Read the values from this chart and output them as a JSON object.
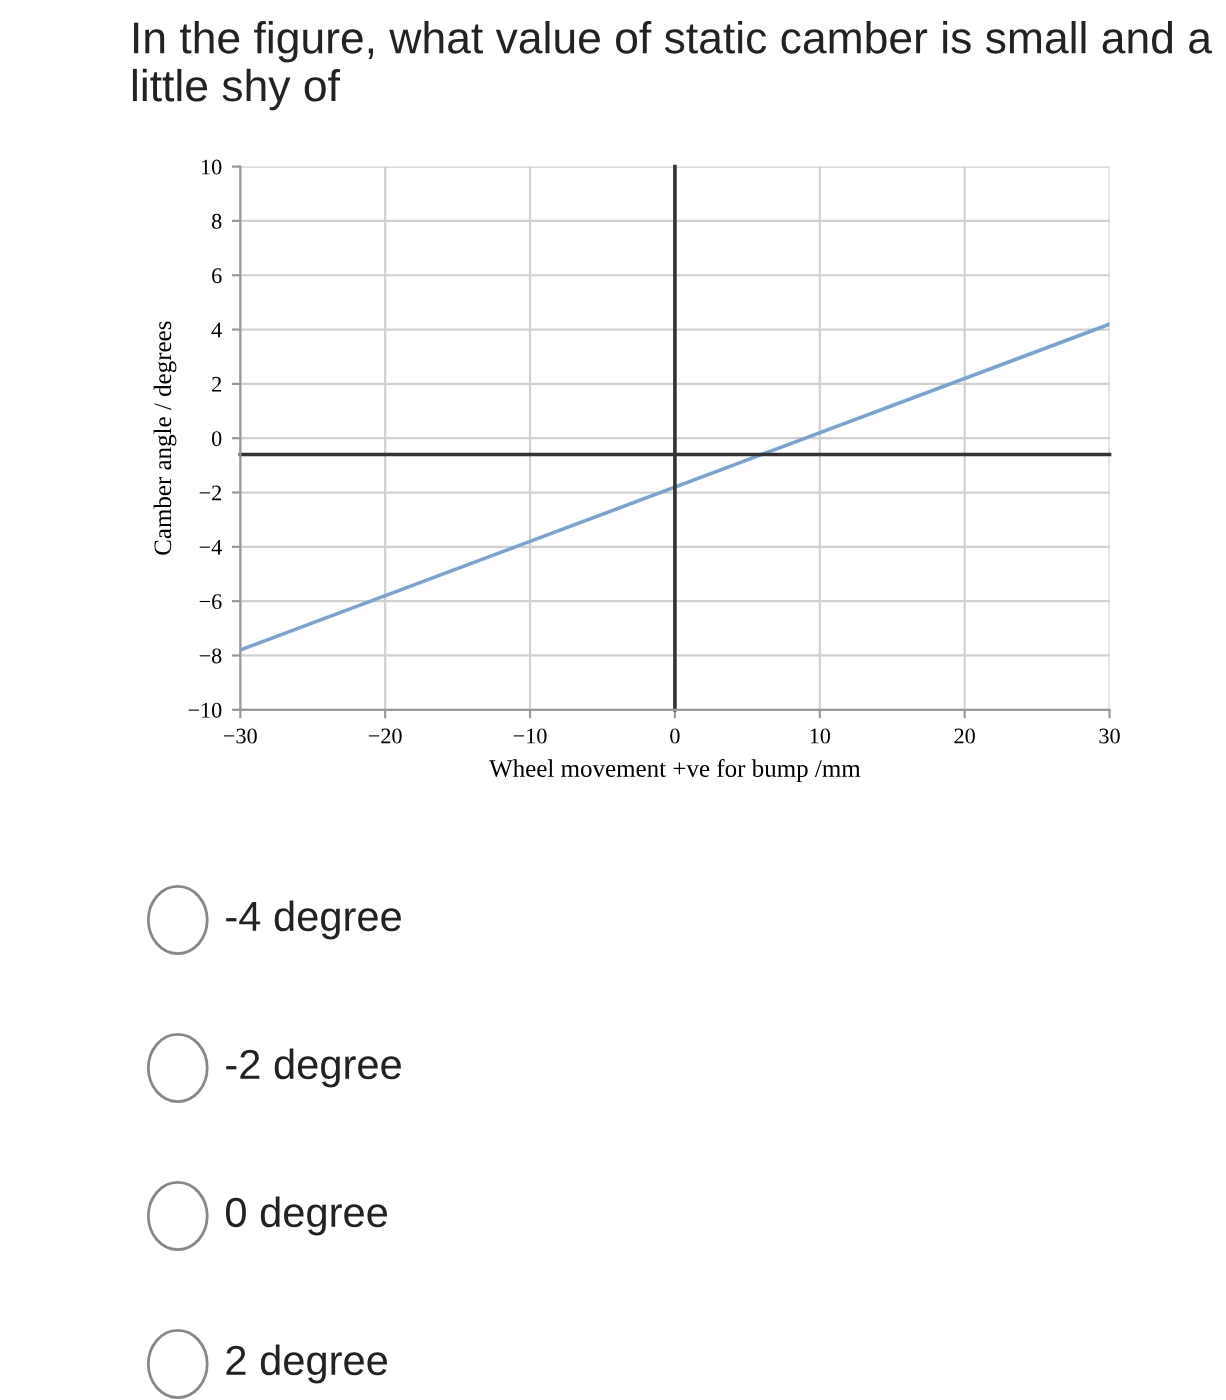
{
  "chart_data": {
    "type": "line",
    "title": "In the figure, what value of static camber is small and a little shy of",
    "xlabel": "Wheel movement +ve for bump /mm",
    "ylabel": "Camber angle / degrees",
    "x": [
      -30,
      30
    ],
    "series": [
      {
        "color": "#7ba3cc",
        "values": [
          -7.8,
          4.2
        ]
      }
    ],
    "xlim": [
      -30,
      30
    ],
    "xticks": [
      -30,
      -20,
      -10,
      0,
      10,
      20,
      30
    ],
    "ylim": [
      -10,
      10
    ],
    "yticks": [
      -10,
      -8,
      -6,
      -4,
      -2,
      0,
      2,
      4,
      6,
      8,
      10
    ],
    "grid": true,
    "legend": false,
    "marker": "none",
    "line_style": "solid",
    "ref_lines": [
      {
        "axis": "y",
        "value": -0.6,
        "color": "#333333"
      },
      {
        "axis": "x",
        "value": 0,
        "color": "#333333"
      }
    ],
    "annotations": [
      "-4 degree",
      "-2 degree",
      "0 degree",
      "2 degree"
    ]
  }
}
